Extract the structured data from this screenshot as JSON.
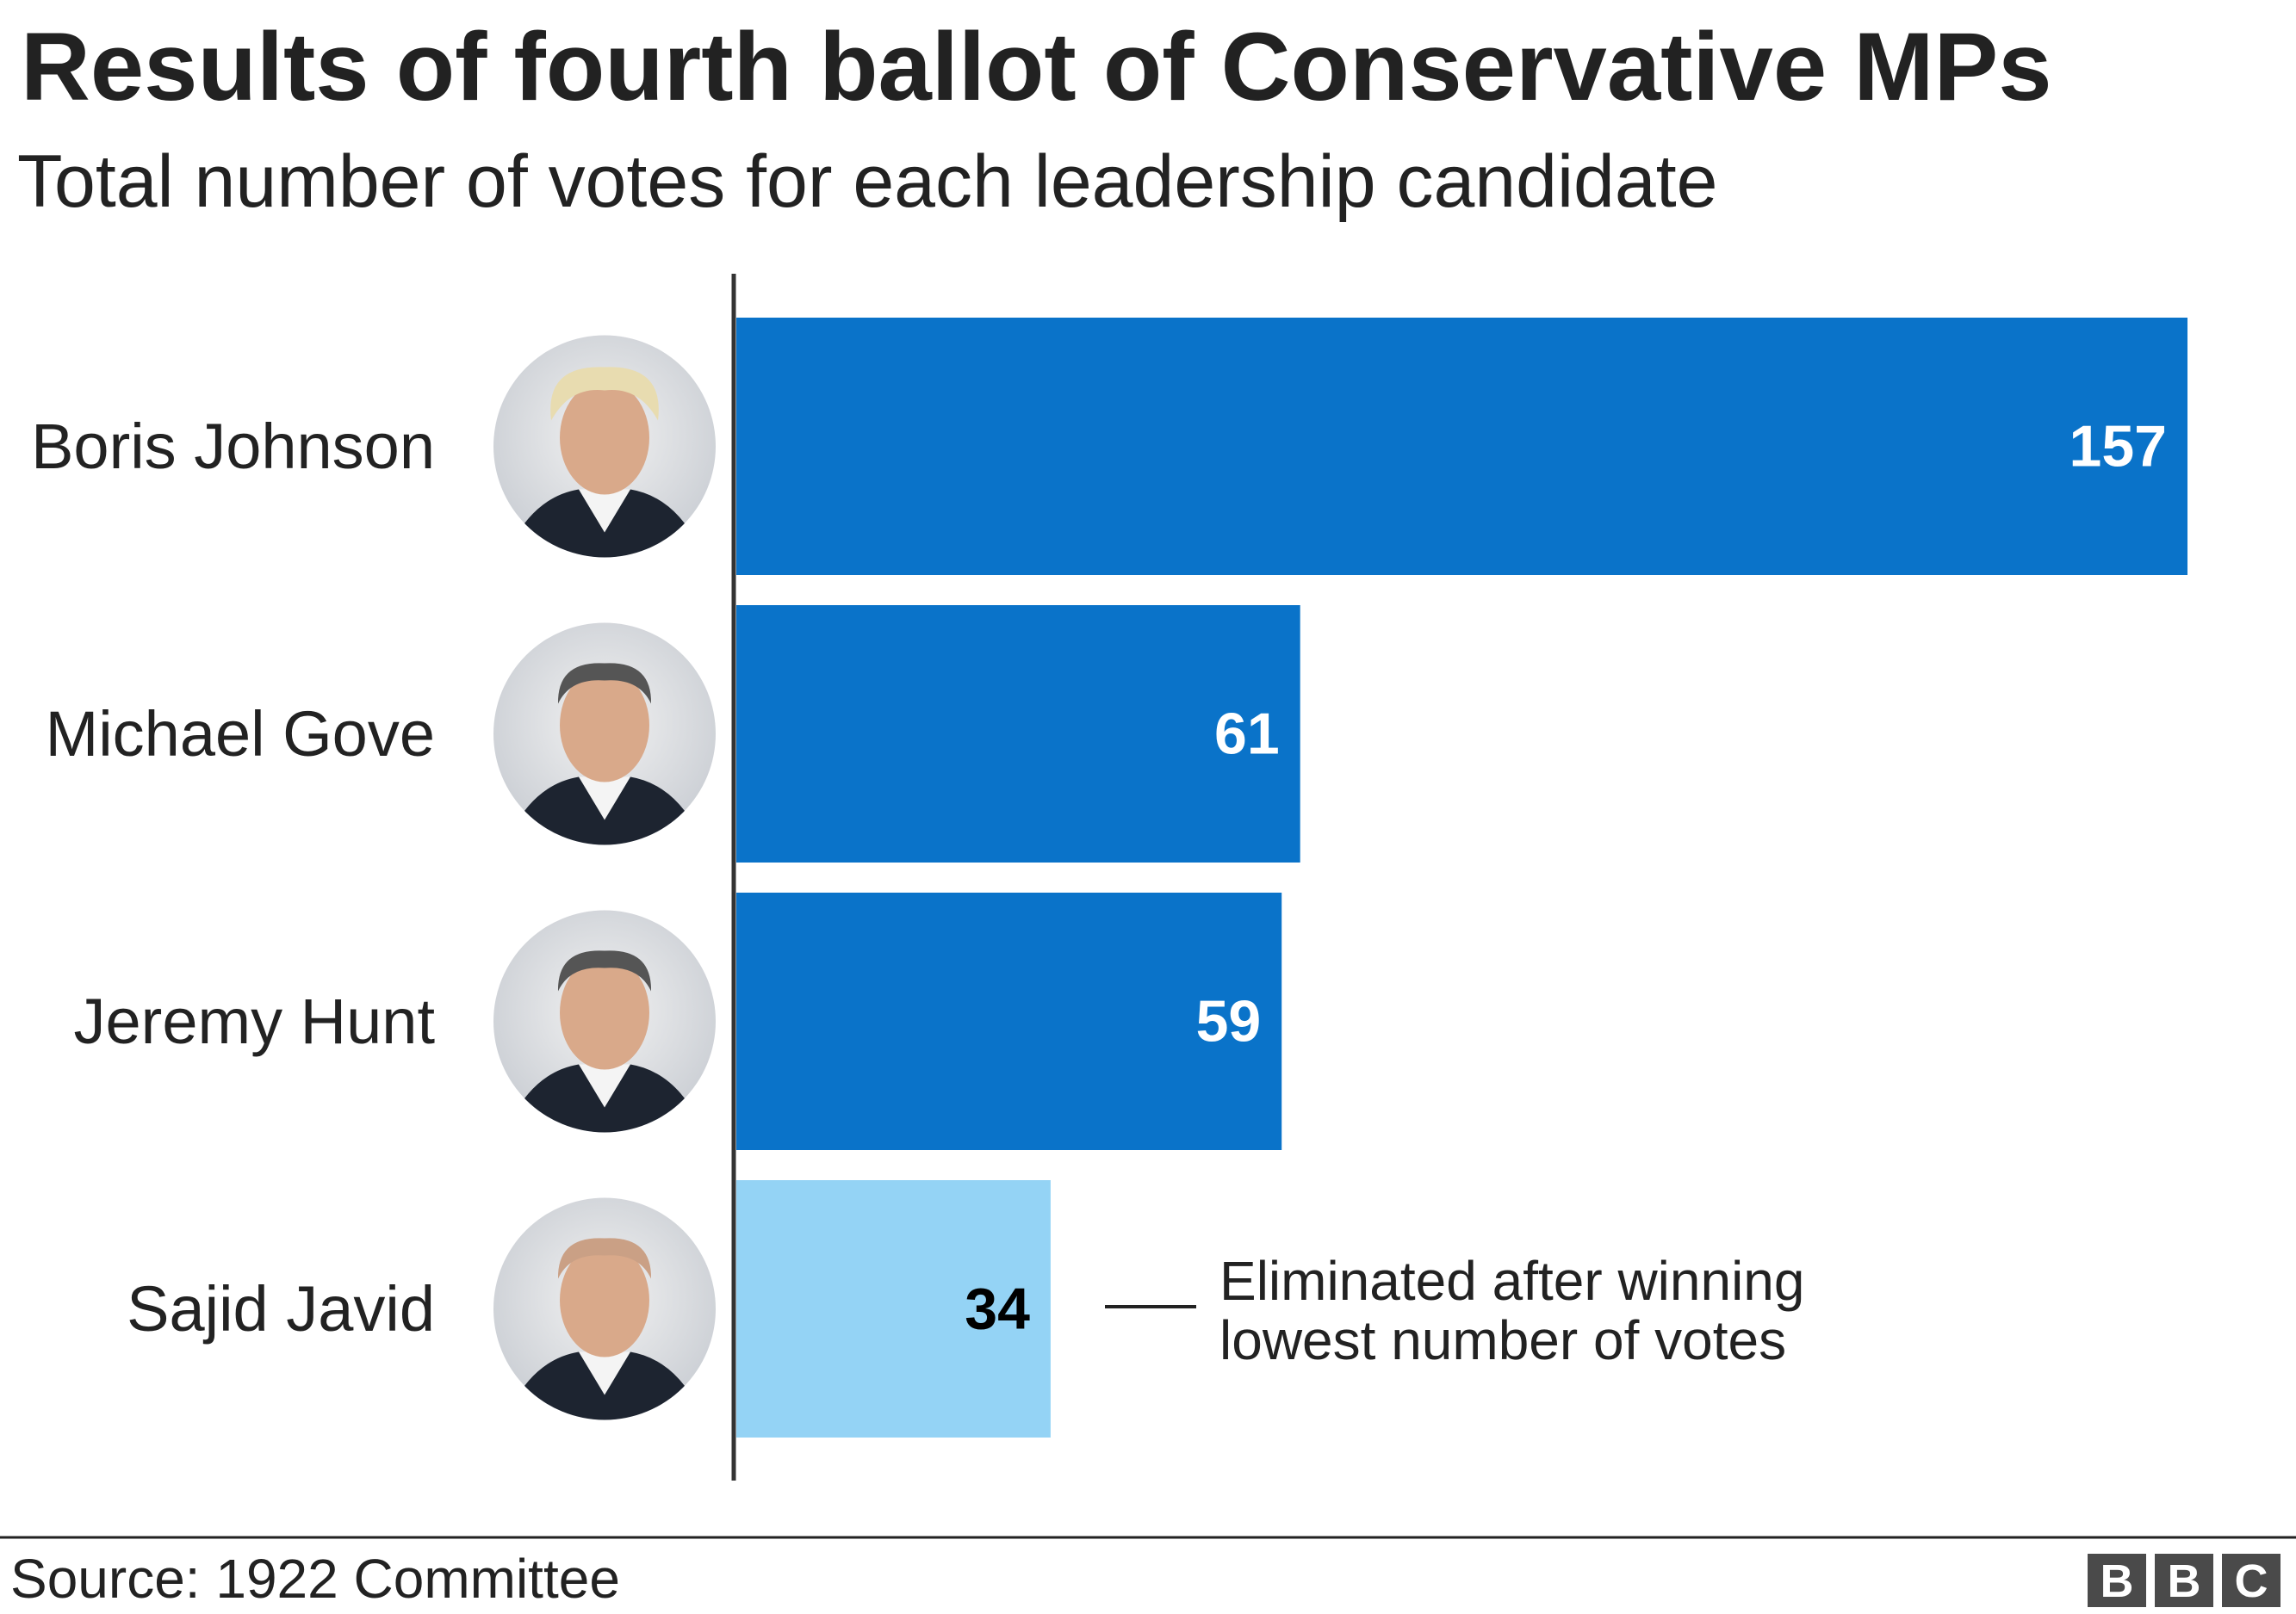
{
  "chart_data": {
    "type": "hbar",
    "title": "Results of fourth ballot of Conservative MPs",
    "subtitle": "Total number of votes for each leadership candidate",
    "categories": [
      "Boris Johnson",
      "Michael Gove",
      "Jeremy Hunt",
      "Sajid Javid"
    ],
    "values": [
      157,
      61,
      59,
      34
    ],
    "colors": [
      "#0a73c9",
      "#0a73c9",
      "#0a73c9",
      "#94d3f5"
    ],
    "label_colors": [
      "#ffffff",
      "#ffffff",
      "#ffffff",
      "#000000"
    ],
    "xlim": [
      0,
      157
    ],
    "annotation": [
      "Eliminated after winning",
      "lowest number of votes"
    ],
    "source": "Source: 1922 Committee",
    "logo": [
      "B",
      "B",
      "C"
    ]
  }
}
